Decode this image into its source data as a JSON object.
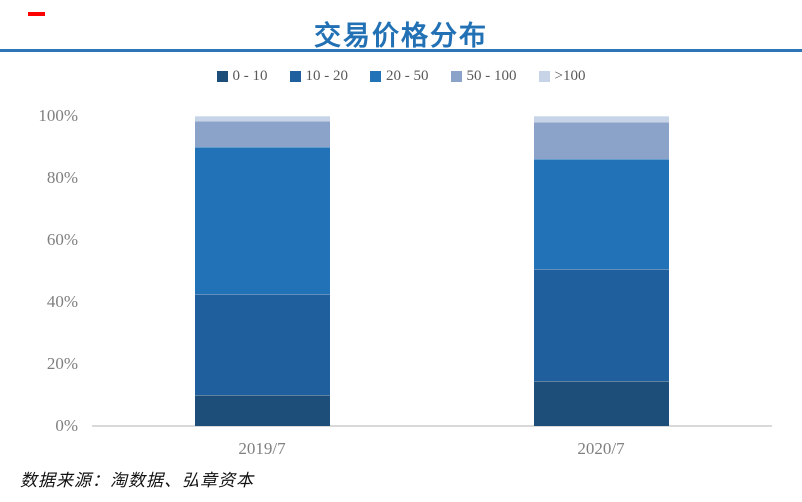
{
  "page": {
    "background": "#FFFFFF"
  },
  "deck_mark": {
    "color": "#FF0000"
  },
  "header": {
    "title": "交易价格分布",
    "title_color": "#2271B5",
    "rule_color": "#2E75B6"
  },
  "chart_data": {
    "type": "bar",
    "stacked": true,
    "title": "交易价格分布",
    "categories": [
      "2019/7",
      "2020/7"
    ],
    "series": [
      {
        "name": "0 - 10",
        "color": "#1C4E79",
        "values": [
          10,
          14.5
        ]
      },
      {
        "name": "10 - 20",
        "color": "#1F5F9E",
        "values": [
          32.5,
          36
        ]
      },
      {
        "name": "20 - 50",
        "color": "#2272B8",
        "values": [
          47.5,
          35.5
        ]
      },
      {
        "name": "50 - 100",
        "color": "#8BA3C8",
        "values": [
          8.5,
          12
        ]
      },
      {
        "name": ">100",
        "color": "#C7D4E8",
        "values": [
          1.5,
          2
        ]
      }
    ],
    "xlabel": "",
    "ylabel": "",
    "ylim": [
      0,
      100
    ],
    "yticks": [
      "0%",
      "20%",
      "40%",
      "60%",
      "80%",
      "100%"
    ],
    "ytick_values": [
      0,
      20,
      40,
      60,
      80,
      100
    ],
    "grid": false,
    "legend_position": "top",
    "axis_line_color": "#D9D9D9",
    "tick_label_color": "#7F7F7F"
  },
  "footer": {
    "source_note": "数据来源：淘数据、弘章资本"
  }
}
